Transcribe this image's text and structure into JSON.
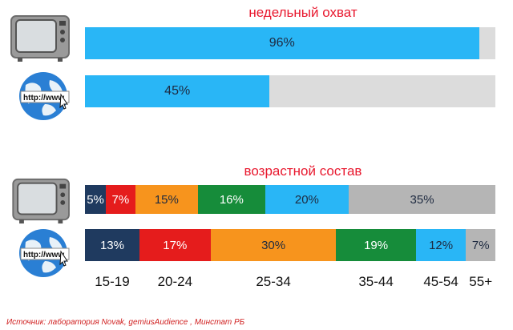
{
  "titles": {
    "reach": "недельный охват",
    "age": "возрастной состав"
  },
  "icons": {
    "tv": "tv-icon",
    "globe": "globe-http-icon",
    "globe_text": "http://www"
  },
  "colors": {
    "reach_fill": "#29b6f6",
    "reach_bg": "#dcdcdc",
    "age": [
      "#1f3a5f",
      "#e51c1c",
      "#f7941d",
      "#168c3a",
      "#29b6f6",
      "#b5b5b5"
    ]
  },
  "chart_data": [
    {
      "type": "bar",
      "title": "недельный охват",
      "categories": [
        "TV",
        "Internet"
      ],
      "values": [
        96,
        45
      ],
      "unit": "%",
      "ylim": [
        0,
        100
      ],
      "data_labels": [
        "96%",
        "45%"
      ]
    },
    {
      "type": "bar",
      "stacked": true,
      "title": "возрастной состав",
      "age_groups": [
        "15-19",
        "20-24",
        "25-34",
        "35-44",
        "45-54",
        "55+"
      ],
      "series": [
        {
          "values": [
            5,
            7,
            15,
            16,
            20,
            35
          ],
          "labels": [
            "5%",
            "7%",
            "15%",
            "16%",
            "20%",
            "35%"
          ]
        },
        {
          "values": [
            13,
            17,
            30,
            19,
            12,
            7
          ],
          "labels": [
            "13%",
            "17%",
            "30%",
            "19%",
            "12%",
            "7%"
          ]
        }
      ]
    }
  ],
  "source": "Источник:  лаборатория Novak, gemiusAudience , Минстат РБ"
}
